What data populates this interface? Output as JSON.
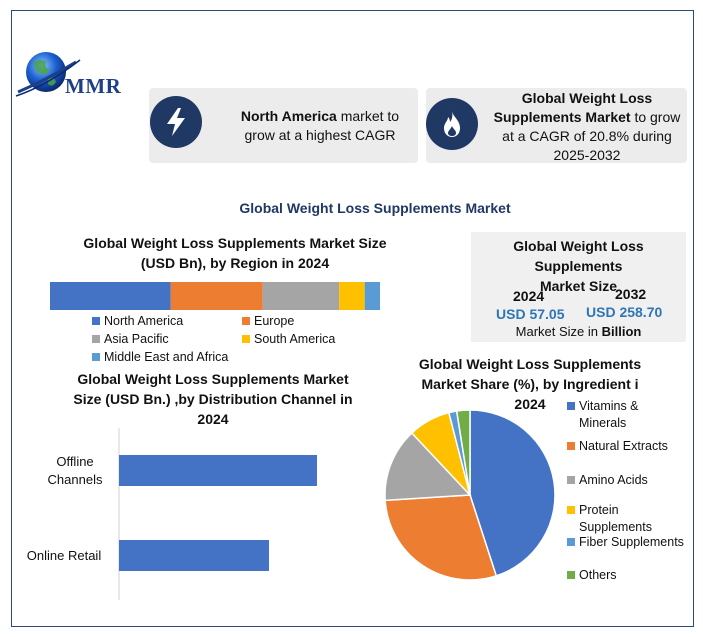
{
  "logo": {
    "text": "MMR"
  },
  "card_left": {
    "bold": "North America",
    "rest1": " market to",
    "rest2": "grow at a highest CAGR",
    "icon": "lightning-bolt-icon"
  },
  "card_right": {
    "bold1": "Global Weight Loss",
    "bold2": "Supplements Market",
    "rest1": " to grow",
    "rest2": "at a CAGR of 20.8% during",
    "rest3": "2025-2032",
    "icon": "flame-icon"
  },
  "main_title": "Global Weight Loss Supplements Market",
  "region": {
    "title1": "Global Weight Loss Supplements Market Size",
    "title2": "(USD Bn), by Region in 2024"
  },
  "size": {
    "title1": "Global Weight Loss Supplements",
    "title2": "Market Size",
    "year_a": "2024",
    "value_a": "USD 57.05",
    "year_b": "2032",
    "value_b": "USD 258.70",
    "unit_prefix": "Market Size in ",
    "unit_bold": "Billion"
  },
  "distribution": {
    "title1": "Global Weight Loss Supplements Market",
    "title2": "Size (USD Bn.) ,by Distribution Channel in",
    "title3": "2024",
    "label_offline_1": "Offline",
    "label_offline_2": "Channels",
    "label_online": "Online Retail"
  },
  "ingredient": {
    "title1": "Global Weight Loss Supplements",
    "title2": "Market Share (%), by Ingredient i",
    "title3": "2024",
    "legend": [
      {
        "line1": "Vitamins &",
        "line2": "Minerals"
      },
      {
        "line1": "Natural Extracts",
        "line2": ""
      },
      {
        "line1": "Amino Acids",
        "line2": ""
      },
      {
        "line1": "Protein",
        "line2": "Supplements"
      },
      {
        "line1": "Fiber Supplements",
        "line2": ""
      },
      {
        "line1": "Others",
        "line2": ""
      }
    ]
  },
  "chart_data": [
    {
      "type": "bar",
      "orientation": "horizontal-stacked",
      "title": "Global Weight Loss Supplements Market Size (USD Bn), by Region in 2024",
      "series": [
        {
          "name": "North America",
          "value": 35.5,
          "color": "#4472c4"
        },
        {
          "name": "Europe",
          "value": 27,
          "color": "#ed7d31"
        },
        {
          "name": "Asia Pacific",
          "value": 22.5,
          "color": "#a5a5a5"
        },
        {
          "name": "South America",
          "value": 7.5,
          "color": "#ffc000"
        },
        {
          "name": "Middle East and Africa",
          "value": 4.5,
          "color": "#5b9bd5"
        }
      ],
      "total": 97
    },
    {
      "type": "bar",
      "orientation": "horizontal",
      "title": "Global Weight Loss Supplements Market Size (USD Bn.) ,by Distribution Channel in 2024",
      "categories": [
        "Offline Channels",
        "Online Retail"
      ],
      "values": [
        33,
        25
      ],
      "xlim": [
        0,
        40
      ],
      "color": "#4472c4"
    },
    {
      "type": "pie",
      "title": "Global Weight Loss Supplements Market Share (%), by Ingredient i 2024",
      "labels": [
        "Vitamins & Minerals",
        "Natural Extracts",
        "Amino Acids",
        "Protein Supplements",
        "Fiber Supplements",
        "Others"
      ],
      "values": [
        45,
        29,
        14,
        8,
        1.5,
        2.5
      ],
      "colors": [
        "#4472c4",
        "#ed7d31",
        "#a5a5a5",
        "#ffc000",
        "#5b9bd5",
        "#70ad47"
      ]
    }
  ]
}
